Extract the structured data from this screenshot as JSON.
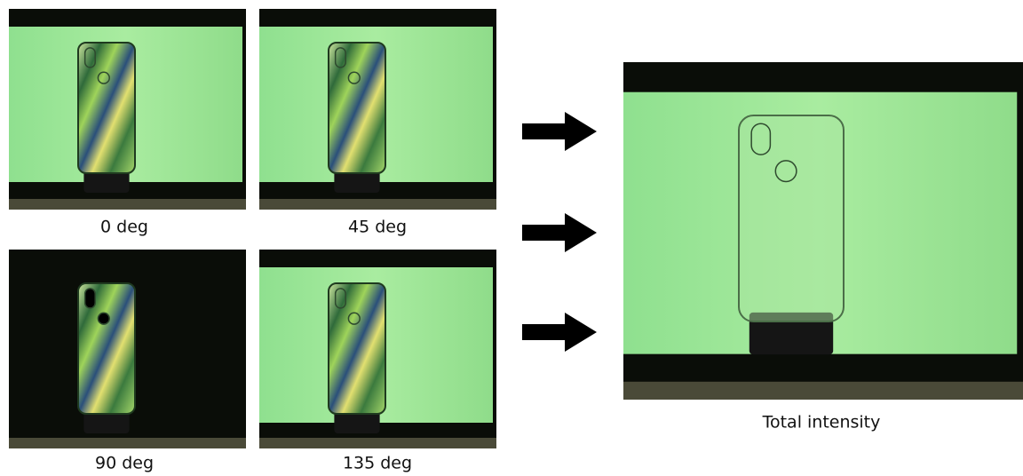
{
  "panels": [
    {
      "label": "0 deg"
    },
    {
      "label": "45 deg"
    },
    {
      "label": "90 deg"
    },
    {
      "label": "135 deg"
    }
  ],
  "result": {
    "label": "Total intensity"
  }
}
